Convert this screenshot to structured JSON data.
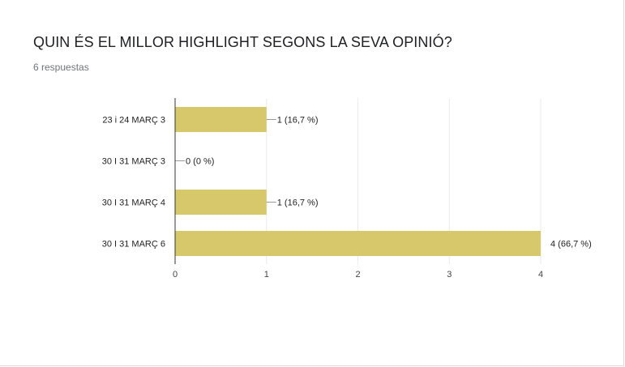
{
  "question": {
    "title": "QUIN ÉS EL MILLOR HIGHLIGHT SEGONS LA SEVA OPINIÓ?",
    "responses": "6 respuestas"
  },
  "chart_data": {
    "type": "bar",
    "orientation": "horizontal",
    "categories": [
      "23 i 24 MARÇ 3",
      "30 I 31 MARÇ 3",
      "30 I 31 MARÇ 4",
      "30 I 31 MARÇ 6"
    ],
    "values": [
      1,
      0,
      1,
      4
    ],
    "data_labels": [
      "1 (16,7 %)",
      "0 (0 %)",
      "1 (16,7 %)",
      "4 (66,7 %)"
    ],
    "x_ticks": [
      "0",
      "1",
      "2",
      "3",
      "4"
    ],
    "xlim": [
      0,
      4
    ],
    "grid": true,
    "bar_color": "#d7c86b"
  }
}
